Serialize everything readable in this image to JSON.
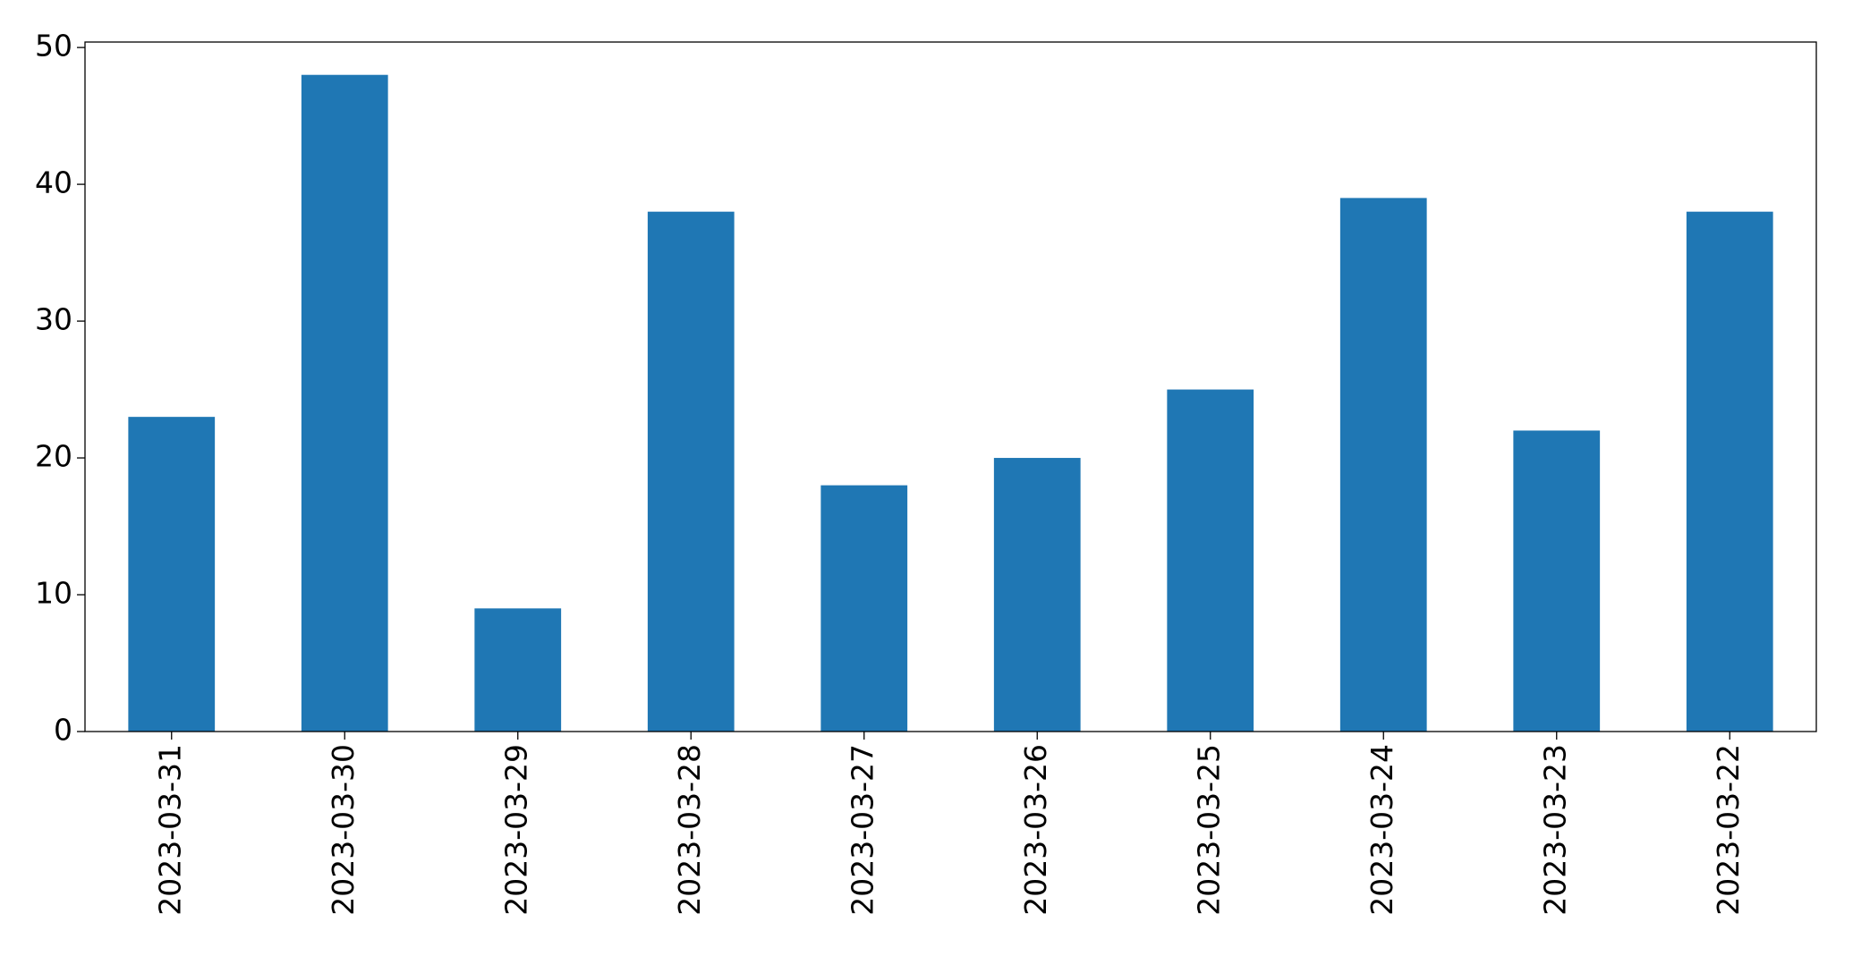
{
  "chart_data": {
    "type": "bar",
    "categories": [
      "2023-03-31",
      "2023-03-30",
      "2023-03-29",
      "2023-03-28",
      "2023-03-27",
      "2023-03-26",
      "2023-03-25",
      "2023-03-24",
      "2023-03-23",
      "2023-03-22"
    ],
    "values": [
      23,
      48,
      9,
      38,
      18,
      20,
      25,
      39,
      22,
      38
    ],
    "color": "#1f77b4",
    "ylim": [
      0,
      50.4
    ],
    "yticks": [
      0,
      10,
      20,
      30,
      40,
      50
    ],
    "grid": false
  }
}
